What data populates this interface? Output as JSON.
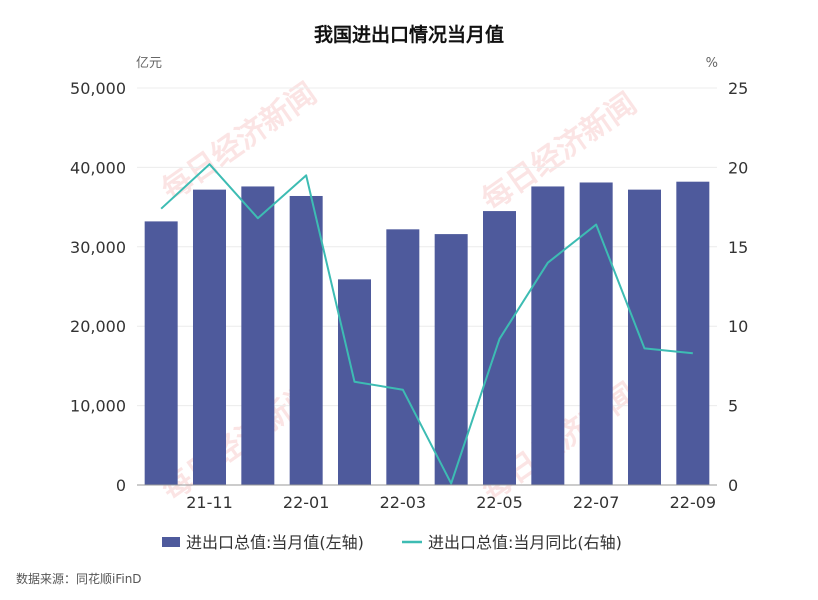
{
  "chart_data": {
    "type": "bar",
    "title": "我国进出口情况当月值",
    "y_left_unit": "亿元",
    "y_right_unit": "%",
    "ylim_left": [
      0,
      50000
    ],
    "ylim_right": [
      0,
      25
    ],
    "y_left_ticks": [
      "0",
      "10,000",
      "20,000",
      "30,000",
      "40,000",
      "50,000"
    ],
    "y_right_ticks": [
      "0",
      "5",
      "10",
      "15",
      "20",
      "25"
    ],
    "categories": [
      "21-10",
      "21-11",
      "21-12",
      "22-01",
      "22-02",
      "22-03",
      "22-04",
      "22-05",
      "22-06",
      "22-07",
      "22-08",
      "22-09"
    ],
    "x_tick_labels": [
      "21-11",
      "22-01",
      "22-03",
      "22-05",
      "22-07",
      "22-09"
    ],
    "series": [
      {
        "name": "进出口总值:当月值(左轴)",
        "type": "bar",
        "axis": "left",
        "color": "#4e5a9c",
        "values": [
          33200,
          37200,
          37600,
          36400,
          25900,
          32200,
          31600,
          34500,
          37600,
          38100,
          37200,
          38200
        ]
      },
      {
        "name": "进出口总值:当月同比(右轴)",
        "type": "line",
        "axis": "right",
        "color": "#3dbcb3",
        "values": [
          17.4,
          20.2,
          16.8,
          19.5,
          6.5,
          6.0,
          0.1,
          9.2,
          14.0,
          16.4,
          8.6,
          8.3
        ]
      }
    ],
    "legend_position": "bottom",
    "grid": true
  },
  "source": "数据来源：同花顺iFinD",
  "watermark": "每日经济新闻"
}
